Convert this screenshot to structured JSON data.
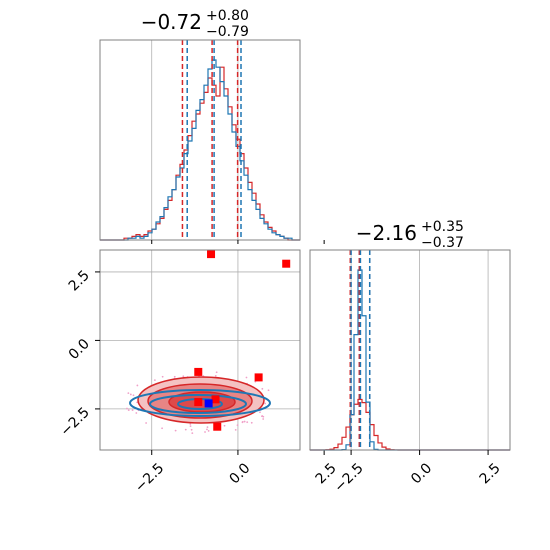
{
  "chart_data": {
    "type": "corner",
    "parameters": [
      {
        "title_median": "−0.72",
        "title_plus": "+0.80",
        "title_minus": "−0.79",
        "range": [
          -4.0,
          1.8
        ],
        "quantiles": {
          "blue": [
            -1.5,
            -0.72,
            0.06
          ],
          "red": [
            -1.58,
            -0.72,
            0.02
          ]
        },
        "hist_blue": [
          0,
          0,
          0,
          0,
          0,
          0,
          0,
          1,
          1,
          2,
          1,
          2,
          4,
          6,
          10,
          13,
          18,
          24,
          28,
          35,
          40,
          48,
          55,
          62,
          72,
          78,
          86,
          95,
          100,
          96,
          88,
          80,
          70,
          60,
          52,
          44,
          36,
          28,
          22,
          17,
          12,
          9,
          6,
          4,
          3,
          2,
          1,
          1,
          0,
          0
        ],
        "hist_red": [
          0,
          0,
          0,
          0,
          0,
          0,
          1,
          1,
          2,
          3,
          2,
          3,
          5,
          6,
          9,
          12,
          17,
          22,
          28,
          36,
          42,
          50,
          58,
          66,
          70,
          76,
          82,
          90,
          86,
          80,
          96,
          84,
          74,
          64,
          56,
          48,
          40,
          32,
          26,
          20,
          14,
          10,
          7,
          5,
          3,
          2,
          1,
          0,
          0,
          0
        ]
      },
      {
        "title_median": "−2.16",
        "title_plus": "+0.35",
        "title_minus": "−0.37",
        "range": [
          -4.0,
          3.3
        ],
        "quantiles": {
          "blue": [
            -2.5,
            -2.16,
            -1.82
          ],
          "red": [
            -2.53,
            -2.2,
            -1.82
          ]
        }
      }
    ],
    "ticks": [
      -2.5,
      0.0,
      2.5
    ],
    "tick_labels": [
      "−2.5",
      "0.0",
      "2.5"
    ],
    "red_points": [
      {
        "x": -0.78,
        "y": 3.15
      },
      {
        "x": 1.4,
        "y": 2.8
      },
      {
        "x": -1.15,
        "y": -1.15
      },
      {
        "x": 0.6,
        "y": -1.35
      },
      {
        "x": -1.15,
        "y": -2.25
      },
      {
        "x": -0.65,
        "y": -2.15
      },
      {
        "x": -0.6,
        "y": -3.15
      }
    ],
    "blue_points": [
      {
        "x": -0.85,
        "y": -2.3
      }
    ],
    "colors": {
      "blue": "#1f77b4",
      "red": "#d62728",
      "red_fill_outer": "#f4c2c2",
      "red_fill_mid": "#e88585",
      "red_fill_inner": "#de4a4a",
      "grid": "#b0b0b0",
      "marker_red": "#ff0000",
      "marker_blue": "#0000ff"
    },
    "grid": true
  }
}
